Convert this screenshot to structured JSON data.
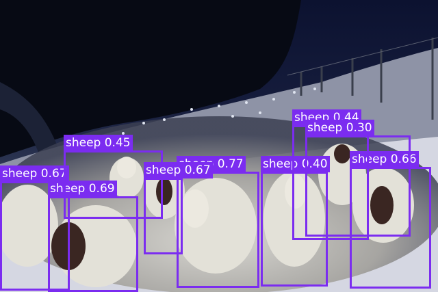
{
  "scene": {
    "description_colors": {
      "sky": "#0b1026",
      "snow": "#d9dbe6",
      "box": "#7b2cf0",
      "label_text": "#ffffff"
    }
  },
  "detections": [
    {
      "label": "sheep 0.66"
    },
    {
      "label": "sheep 0.40"
    },
    {
      "label": "sheep 0.77"
    },
    {
      "label": "sheep 0.67"
    },
    {
      "label": "sheep 0.69"
    },
    {
      "label": "sheep 0.45"
    },
    {
      "label": "sheep 0.67"
    },
    {
      "label": "sheep 0.44"
    },
    {
      "label": "sheep 0.30"
    }
  ]
}
